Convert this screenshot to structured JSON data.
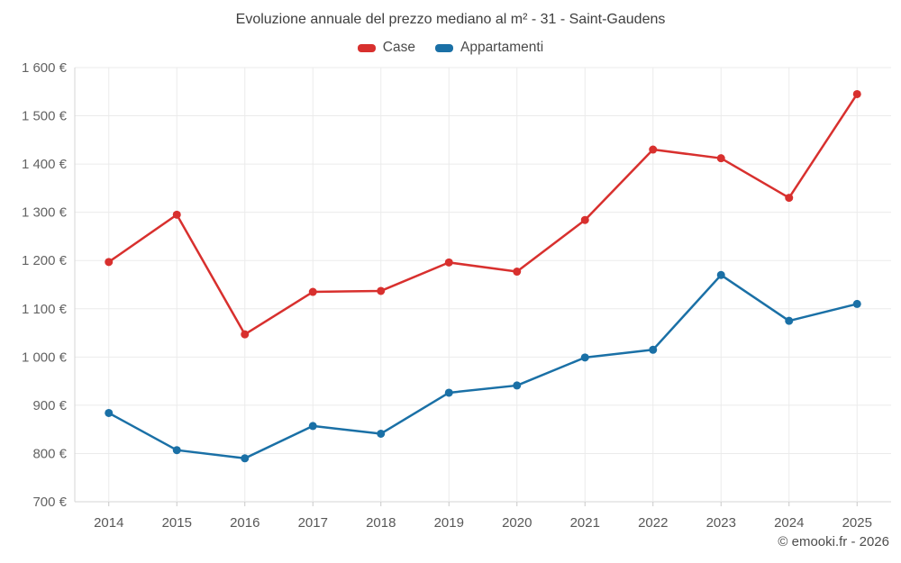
{
  "title": "Evoluzione annuale del prezzo mediano al m² - 31 - Saint-Gaudens",
  "footer": "© emooki.fr - 2026",
  "legend": [
    {
      "label": "Case",
      "color": "#d8302e"
    },
    {
      "label": "Appartamenti",
      "color": "#1a70a6"
    }
  ],
  "colors": {
    "grid": "#ebebeb",
    "axis": "#d6d6d6",
    "tick_mark": "#c9c9c9",
    "title_text": "#3f3f3f",
    "tick_text": "#636363"
  },
  "chart_data": {
    "type": "line",
    "title": "Evoluzione annuale del prezzo mediano al m² - 31 - Saint-Gaudens",
    "categories": [
      "2014",
      "2015",
      "2016",
      "2017",
      "2018",
      "2019",
      "2020",
      "2021",
      "2022",
      "2023",
      "2024",
      "2025"
    ],
    "series": [
      {
        "name": "Case",
        "color": "#d8302e",
        "values": [
          1197,
          1295,
          1047,
          1135,
          1137,
          1196,
          1177,
          1284,
          1430,
          1412,
          1330,
          1545
        ]
      },
      {
        "name": "Appartamenti",
        "color": "#1a70a6",
        "values": [
          884,
          807,
          790,
          857,
          841,
          926,
          941,
          999,
          1015,
          1170,
          1075,
          1110
        ]
      }
    ],
    "xlabel": "",
    "ylabel": "",
    "ylim": [
      700,
      1600
    ],
    "ytick_step": 100,
    "y_ticks": [
      "1 600 €",
      "1 500 €",
      "1 400 €",
      "1 300 €",
      "1 200 €",
      "1 100 €",
      "1 000 €",
      "900 €",
      "800 €",
      "700 €"
    ],
    "grid": true,
    "legend_position": "top"
  }
}
